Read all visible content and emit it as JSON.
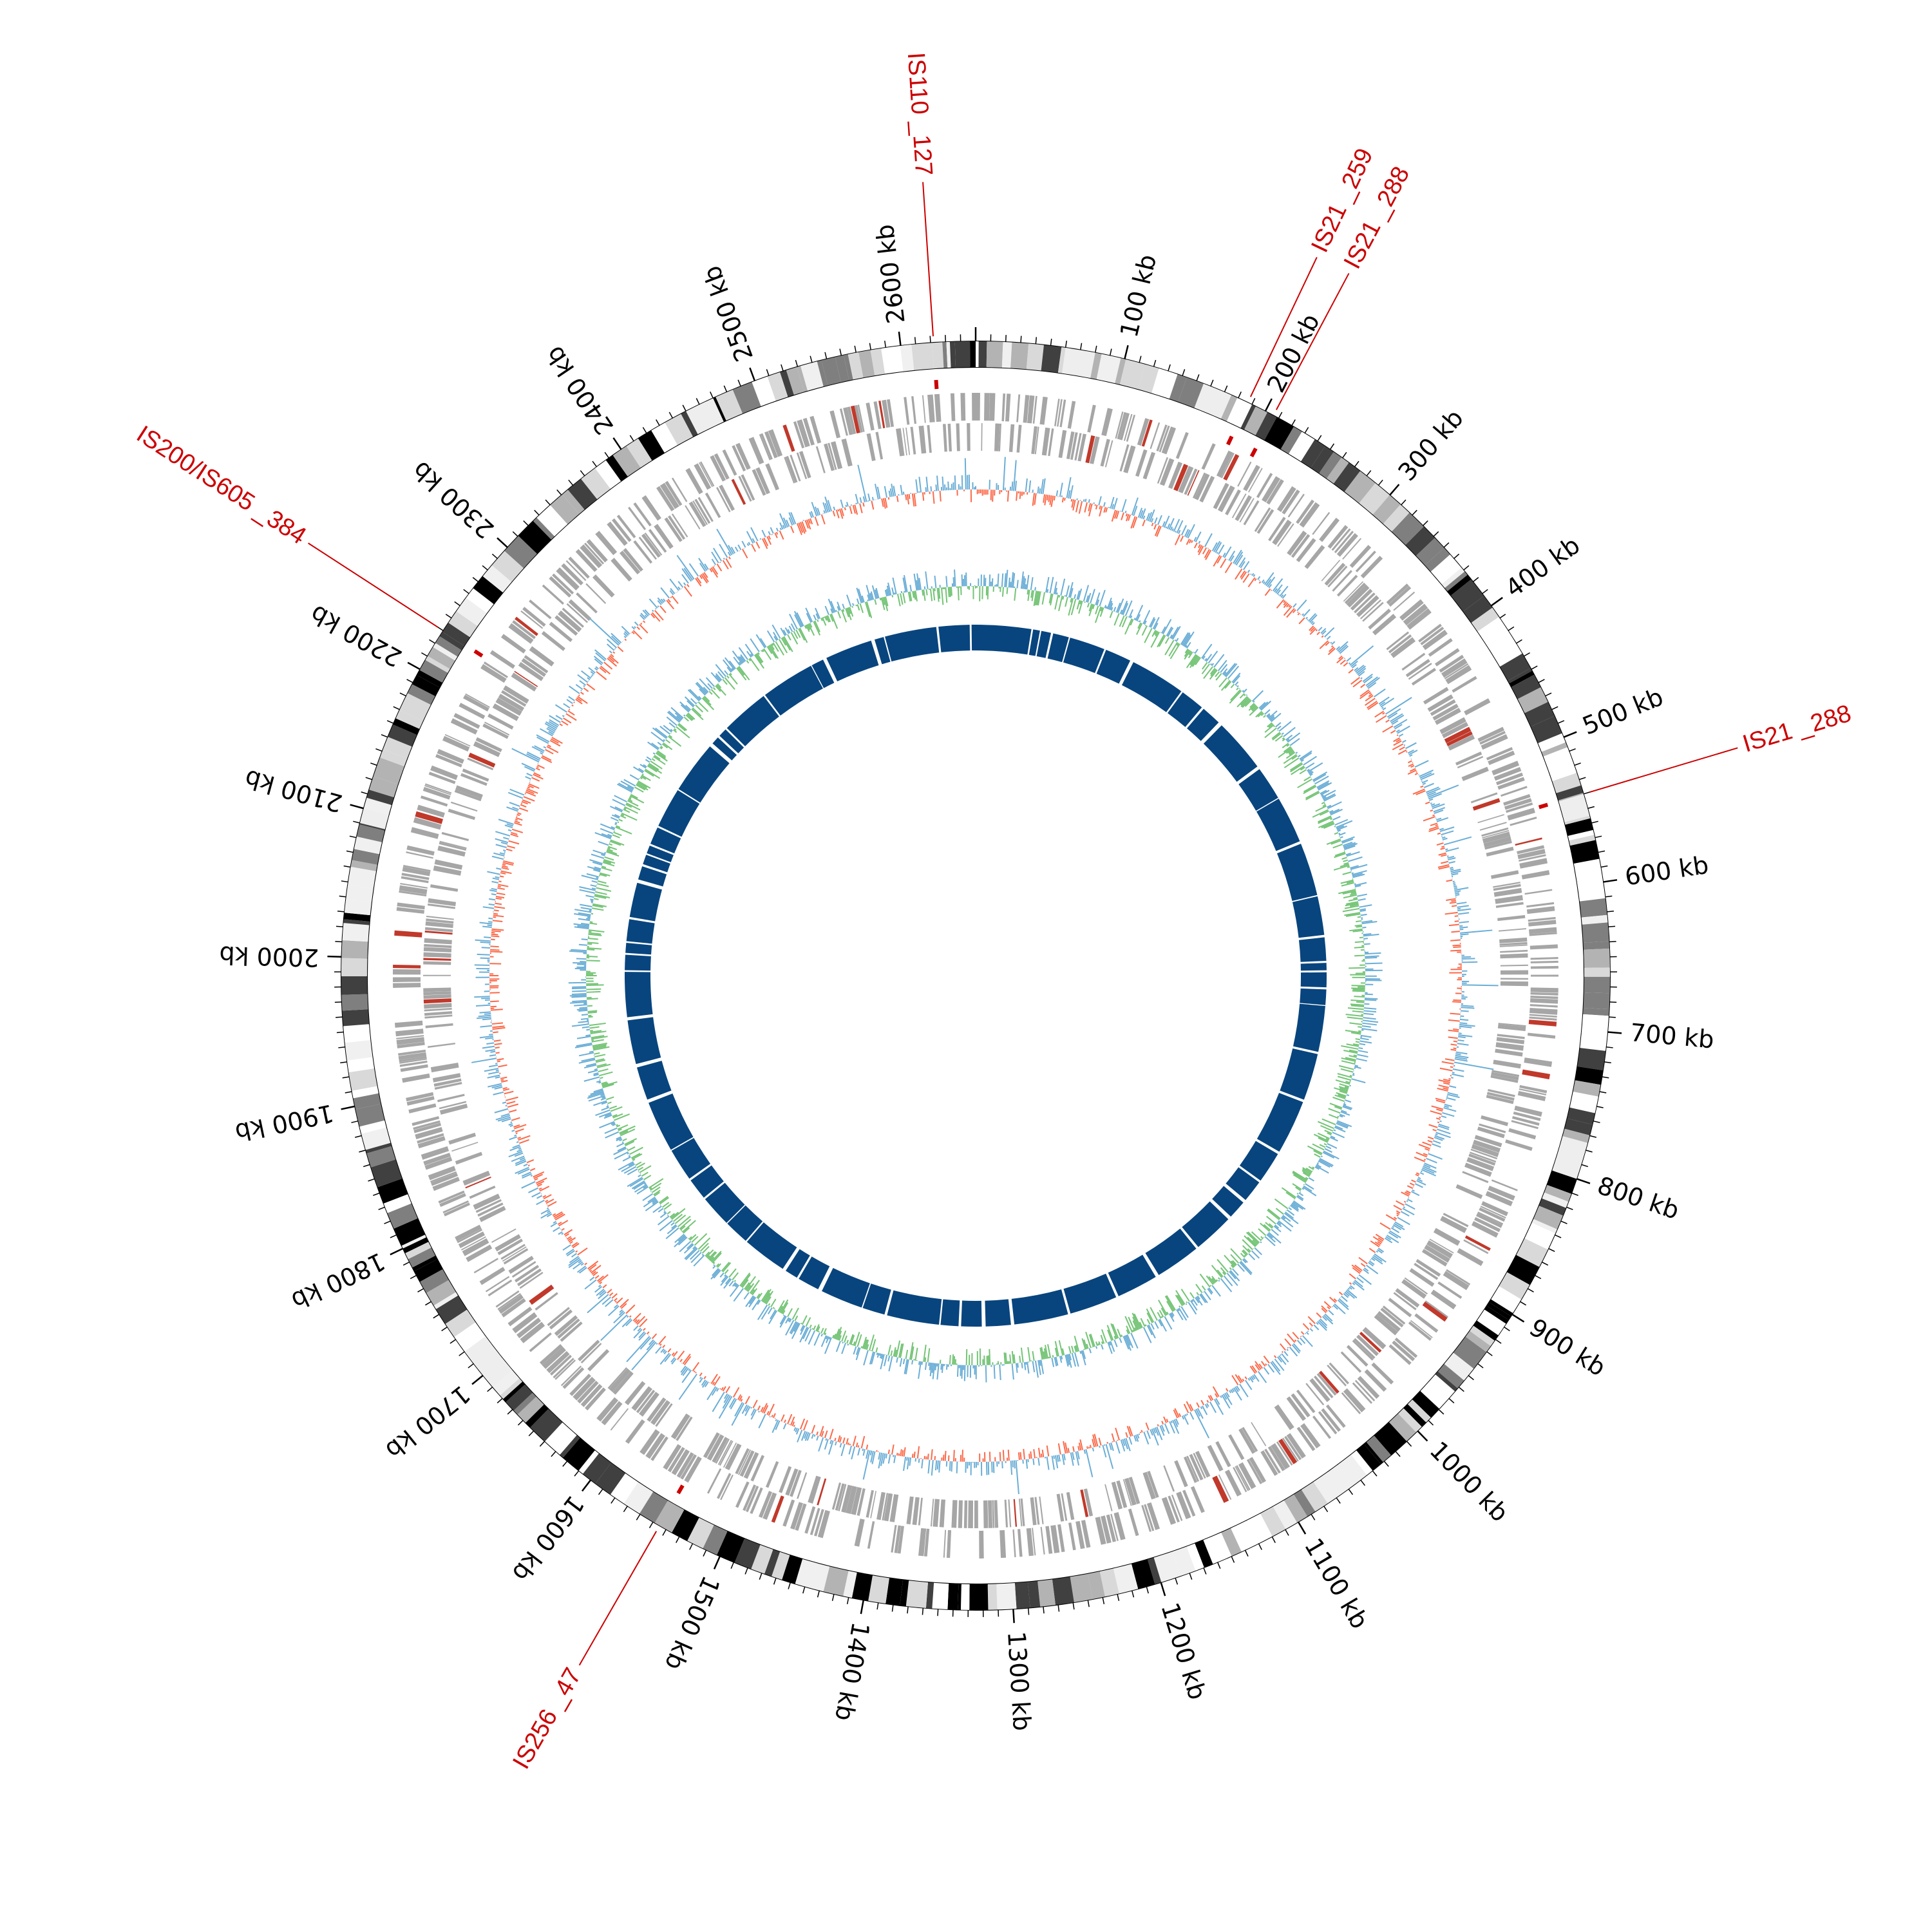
{
  "genome": {
    "total_kb": 2650,
    "tick_step_kb": 100,
    "tick_label_suffix": " kb",
    "tick_labels": [
      "100 kb",
      "200 kb",
      "300 kb",
      "400 kb",
      "500 kb",
      "600 kb",
      "700 kb",
      "800 kb",
      "900 kb",
      "1000 kb",
      "1100 kb",
      "1200 kb",
      "1300 kb",
      "1400 kb",
      "1500 kb",
      "1600 kb",
      "1700 kb",
      "1800 kb",
      "1900 kb",
      "2000 kb",
      "2100 kb",
      "2200 kb",
      "2300 kb",
      "2400 kb",
      "2500 kb",
      "2600 kb"
    ]
  },
  "insertion_sequences": [
    {
      "label": "IS110 _127",
      "position_kb": 2622
    },
    {
      "label": "IS21 _259",
      "position_kb": 187
    },
    {
      "label": "IS21 _288",
      "position_kb": 206
    },
    {
      "label": "IS21 _288",
      "position_kb": 540
    },
    {
      "label": "IS200/IS605 _384",
      "position_kb": 2230
    },
    {
      "label": "IS256 _47",
      "position_kb": 1545
    }
  ],
  "tracks": [
    {
      "name": "karyotype-ideogram",
      "colors": [
        "#000000",
        "#404040",
        "#7f7f7f",
        "#b3b3b3",
        "#d9d9d9",
        "#f0f0f0",
        "#ffffff"
      ]
    },
    {
      "name": "genes-forward-reverse",
      "color": "#a6a6a6",
      "accent": "#c0392b"
    },
    {
      "name": "gc-skew",
      "colors": [
        "#6baed6",
        "#fb6a4a"
      ]
    },
    {
      "name": "gc-content",
      "colors": [
        "#6baed6",
        "#74c476"
      ]
    },
    {
      "name": "homology-blocks",
      "color": "#08457e"
    }
  ],
  "colors": {
    "is_label": "#cc0000",
    "tick_text": "#000000"
  }
}
